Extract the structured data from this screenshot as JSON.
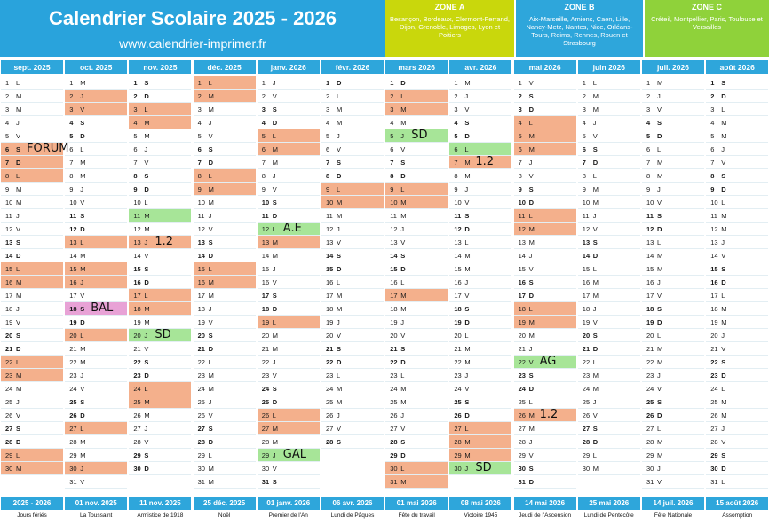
{
  "header": {
    "title": "Calendrier Scolaire 2025 - 2026",
    "url": "www.calendrier-imprimer.fr"
  },
  "zones": [
    {
      "name": "ZONE A",
      "color": "#c9d70c",
      "cities": "Besançon, Bordeaux, Clermont-Ferrand, Dijon, Grenoble, Limoges, Lyon et Poitiers"
    },
    {
      "name": "ZONE B",
      "color": "#2ea6db",
      "cities": "Aix-Marseille, Amiens, Caen, Lille, Nancy-Metz, Nantes, Nice, Orléans-Tours, Reims, Rennes, Rouen et Strasbourg"
    },
    {
      "name": "ZONE C",
      "color": "#8fd23a",
      "cities": "Créteil, Montpellier, Paris, Toulouse et Versailles"
    }
  ],
  "months": [
    {
      "label": "sept. 2025",
      "days": 30,
      "start": 0
    },
    {
      "label": "oct. 2025",
      "days": 31,
      "start": 2
    },
    {
      "label": "nov. 2025",
      "days": 30,
      "start": 5
    },
    {
      "label": "déc. 2025",
      "days": 31,
      "start": 0
    },
    {
      "label": "janv. 2026",
      "days": 31,
      "start": 3
    },
    {
      "label": "févr. 2026",
      "days": 28,
      "start": 6
    },
    {
      "label": "mars 2026",
      "days": 31,
      "start": 6
    },
    {
      "label": "avr. 2026",
      "days": 30,
      "start": 2
    },
    {
      "label": "mai 2026",
      "days": 31,
      "start": 4
    },
    {
      "label": "juin 2026",
      "days": 30,
      "start": 0
    },
    {
      "label": "juil. 2026",
      "days": 31,
      "start": 2
    },
    {
      "label": "août 2026",
      "days": 31,
      "start": 5
    }
  ],
  "weekday_letters": [
    "L",
    "M",
    "M",
    "J",
    "V",
    "S",
    "D"
  ],
  "highlights": {
    "salmon": [
      [
        0,
        6
      ],
      [
        0,
        7
      ],
      [
        0,
        8
      ],
      [
        0,
        15
      ],
      [
        0,
        16
      ],
      [
        0,
        22
      ],
      [
        0,
        23
      ],
      [
        0,
        29
      ],
      [
        0,
        30
      ],
      [
        1,
        2
      ],
      [
        1,
        3
      ],
      [
        1,
        13
      ],
      [
        1,
        15
      ],
      [
        1,
        16
      ],
      [
        1,
        20
      ],
      [
        1,
        27
      ],
      [
        1,
        30
      ],
      [
        2,
        3
      ],
      [
        2,
        4
      ],
      [
        2,
        13
      ],
      [
        2,
        17
      ],
      [
        2,
        18
      ],
      [
        2,
        24
      ],
      [
        2,
        25
      ],
      [
        3,
        1
      ],
      [
        3,
        2
      ],
      [
        3,
        8
      ],
      [
        3,
        9
      ],
      [
        3,
        15
      ],
      [
        3,
        16
      ],
      [
        4,
        5
      ],
      [
        4,
        6
      ],
      [
        4,
        12
      ],
      [
        4,
        13
      ],
      [
        4,
        19
      ],
      [
        4,
        26
      ],
      [
        4,
        27
      ],
      [
        5,
        9
      ],
      [
        5,
        10
      ],
      [
        6,
        2
      ],
      [
        6,
        3
      ],
      [
        6,
        9
      ],
      [
        6,
        10
      ],
      [
        6,
        17
      ],
      [
        6,
        30
      ],
      [
        6,
        31
      ],
      [
        7,
        7
      ],
      [
        7,
        27
      ],
      [
        7,
        28
      ],
      [
        7,
        29
      ],
      [
        8,
        4
      ],
      [
        8,
        5
      ],
      [
        8,
        6
      ],
      [
        8,
        11
      ],
      [
        8,
        12
      ],
      [
        8,
        18
      ],
      [
        8,
        19
      ],
      [
        8,
        26
      ]
    ],
    "green": [
      [
        6,
        5
      ],
      [
        7,
        6
      ],
      [
        2,
        20
      ],
      [
        4,
        12
      ],
      [
        4,
        29
      ],
      [
        7,
        30
      ],
      [
        8,
        22
      ],
      [
        2,
        11
      ]
    ],
    "pink": [
      [
        1,
        18
      ]
    ]
  },
  "notes": [
    {
      "text": "FORUM",
      "month": 0,
      "day": 6
    },
    {
      "text": "BAL",
      "month": 1,
      "day": 18
    },
    {
      "text": "1.2",
      "month": 2,
      "day": 13
    },
    {
      "text": "SD",
      "month": 2,
      "day": 20
    },
    {
      "text": "A.E",
      "month": 4,
      "day": 12
    },
    {
      "text": "GAL",
      "month": 4,
      "day": 29
    },
    {
      "text": "SD",
      "month": 6,
      "day": 5
    },
    {
      "text": "1.2",
      "month": 7,
      "day": 7
    },
    {
      "text": "SD",
      "month": 7,
      "day": 30
    },
    {
      "text": "AG",
      "month": 8,
      "day": 22
    },
    {
      "text": "1.2",
      "month": 8,
      "day": 26
    }
  ],
  "holidays": [
    {
      "date": "2025 - 2026",
      "name": "Jours fériés"
    },
    {
      "date": "01 nov. 2025",
      "name": "La Toussaint"
    },
    {
      "date": "11 nov. 2025",
      "name": "Armistice de 1918"
    },
    {
      "date": "25 déc. 2025",
      "name": "Noël"
    },
    {
      "date": "01 janv. 2026",
      "name": "Premier de l'An"
    },
    {
      "date": "06 avr. 2026",
      "name": "Lundi de Pâques"
    },
    {
      "date": "01 mai 2026",
      "name": "Fête du travail"
    },
    {
      "date": "08 mai 2026",
      "name": "Victoire 1945"
    },
    {
      "date": "14 mai 2026",
      "name": "Jeudi de l'Ascension"
    },
    {
      "date": "25 mai 2026",
      "name": "Lundi de Pentecôte"
    },
    {
      "date": "14 juil. 2026",
      "name": "Fête Nationale"
    },
    {
      "date": "15 août 2026",
      "name": "Assomption"
    }
  ]
}
